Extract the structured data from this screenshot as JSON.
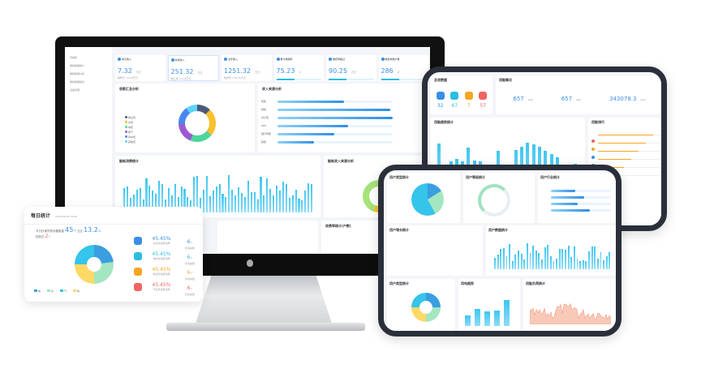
{
  "monitor": {
    "sidebar": [
      "驾驶舱",
      "能耗数据统计",
      "能耗数据分析",
      "能耗数据报表",
      "设备管理"
    ],
    "kpis": [
      {
        "label": "本日收入",
        "value": "7.32",
        "unit": "万元",
        "foot": "较昨日 +0.12万元"
      },
      {
        "label": "本月收入",
        "value": "251.32",
        "unit": "万元",
        "foot": "较上月 +4.22万元"
      },
      {
        "label": "全年收入",
        "value": "1251.32",
        "unit": "万元",
        "foot": "较去年 +14.32万元"
      },
      {
        "label": "累计收缴率",
        "value": "75.23",
        "unit": "%",
        "foot": ""
      },
      {
        "label": "缴费率超过",
        "value": "90.25",
        "unit": "万元",
        "foot": ""
      },
      {
        "label": "缴费未缴户数",
        "value": "286",
        "unit": "户",
        "foot": ""
      }
    ],
    "panel1": {
      "title": "收款汇总分析",
      "legend": [
        "物业费",
        "水费",
        "电费",
        "暖气",
        "停车费",
        "其他费"
      ]
    },
    "panel2": {
      "title": "收入来源分析",
      "rows": [
        "现金",
        "微信",
        "支付宝",
        "POS",
        "银行转账",
        "其他"
      ]
    },
    "panel3": {
      "title": "能耗消费统计"
    },
    "panel4": {
      "title": "能耗收入来源分析"
    },
    "panel5": {
      "title": "收费率统计(户数)"
    }
  },
  "daily": {
    "title": "每日统计",
    "time": "2020-09-29 14:00",
    "summary_label": "今日抄读失败设备数量",
    "count": "45",
    "count_unit": "个",
    "ratio_label": "占比",
    "ratio": "13.2",
    "ratio_unit": "%",
    "diff_label": "较前日",
    "diff": "2",
    "legend": [
      "电",
      "水",
      "气",
      "热"
    ],
    "rows": [
      {
        "pct": "45.45%",
        "label": "水表抄读成功率",
        "n": "6",
        "unit": "个",
        "nlabel": "抄读失败",
        "color": "#3a8ee6"
      },
      {
        "pct": "45.45%",
        "label": "电表抄读成功率",
        "n": "6",
        "unit": "个",
        "nlabel": "抄读失败",
        "color": "#2bbde0"
      },
      {
        "pct": "45.45%",
        "label": "热表抄读成功率",
        "n": "6",
        "unit": "个",
        "nlabel": "抄读失败",
        "color": "#f5a623"
      },
      {
        "pct": "45.45%",
        "label": "气表抄读成功率",
        "n": "6",
        "unit": "个",
        "nlabel": "抄读失败",
        "color": "#f26464"
      }
    ]
  },
  "tablet1": {
    "overview": "总览数据",
    "stats": [
      {
        "v": "32",
        "c": "#3a8ee6"
      },
      {
        "v": "67",
        "c": "#2bbde0"
      },
      {
        "v": "7",
        "c": "#f5a623"
      },
      {
        "v": "57",
        "c": "#f26464"
      }
    ],
    "usage": "用能概况",
    "u": [
      {
        "v": "657",
        "unit": "kwh"
      },
      {
        "v": "657",
        "unit": "kwh"
      },
      {
        "v": "343078.3",
        "unit": "kwh"
      }
    ],
    "chart": "用能趋势统计",
    "rank": "用能排行"
  },
  "tablet2": {
    "p1": "用户类型统计",
    "p2": "用户等级统计",
    "p3": "用户行业统计",
    "p4": "用户增长统计",
    "p5": "用户数据统计",
    "p6": "用户类型统计",
    "p7": "用电趋势",
    "p8": "用能负荷统计"
  }
}
